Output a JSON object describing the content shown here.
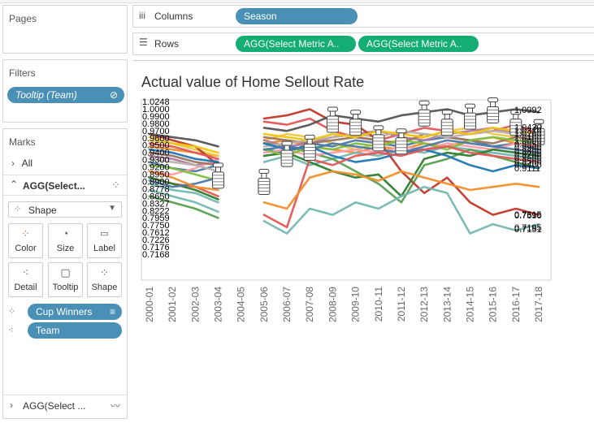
{
  "pages_panel": {
    "title": "Pages"
  },
  "filters_panel": {
    "title": "Filters",
    "pill": "Tooltip (Team)"
  },
  "marks_panel": {
    "title": "Marks",
    "all_label": "All",
    "agg_label": "AGG(Select...",
    "mark_type": "Shape",
    "buttons": [
      {
        "label": "Color",
        "icon": "color-dots-icon"
      },
      {
        "label": "Size",
        "icon": "size-icon"
      },
      {
        "label": "Label",
        "icon": "label-icon"
      },
      {
        "label": "Detail",
        "icon": "detail-icon"
      },
      {
        "label": "Tooltip",
        "icon": "tooltip-icon"
      },
      {
        "label": "Shape",
        "icon": "shape-icon"
      }
    ],
    "fields": [
      {
        "label": "Cup Winners",
        "icon": "shape-field-icon"
      },
      {
        "label": "Team",
        "icon": "detail-field-icon"
      }
    ],
    "bottom_label": "AGG(Select ..."
  },
  "columns_shelf": {
    "label": "Columns",
    "pills": [
      "Season"
    ]
  },
  "rows_shelf": {
    "label": "Rows",
    "pills": [
      "AGG(Select Metric A..",
      "AGG(Select Metric A.."
    ]
  },
  "chart_data": {
    "type": "line",
    "title": "Actual value of Home Sellout Rate",
    "categories": [
      "2000-01",
      "2001-02",
      "2002-03",
      "2003-04",
      "2004-05",
      "2005-06",
      "2006-07",
      "2007-08",
      "2008-09",
      "2009-10",
      "2010-11",
      "2011-12",
      "2012-13",
      "2013-14",
      "2014-15",
      "2015-16",
      "2016-17",
      "2017-18"
    ],
    "ylim": [
      0.55,
      1.13
    ],
    "gap_category": "2004-05",
    "grid": false,
    "colors": [
      "#e15759",
      "#4e79a7",
      "#f28e2b",
      "#76b7b2",
      "#59a14f",
      "#edc948",
      "#b07aa1",
      "#ff9da7",
      "#9c755f",
      "#bab0ac",
      "#c0392b",
      "#2e7d32",
      "#f1c40f",
      "#555555",
      "#1f77b4",
      "#7fbf3f"
    ],
    "series": [
      {
        "values": [
          0.88,
          0.86,
          0.85,
          0.82,
          null,
          1.06,
          1.05,
          1.07,
          1.03,
          1.01,
          1.0,
          1.02,
          1.04,
          1.03,
          1.02,
          1.03,
          1.05,
          1.02
        ]
      },
      {
        "values": [
          0.93,
          0.91,
          0.9,
          0.92,
          null,
          0.97,
          0.96,
          0.99,
          0.98,
          1.0,
          0.99,
          0.98,
          1.0,
          1.01,
          1.0,
          0.98,
          0.99,
          0.97
        ]
      },
      {
        "values": [
          0.98,
          0.97,
          0.96,
          0.95,
          null,
          0.99,
          1.0,
          0.98,
          0.97,
          0.96,
          0.98,
          0.97,
          0.99,
          0.98,
          1.0,
          1.01,
          0.99,
          0.98
        ]
      },
      {
        "values": [
          0.86,
          0.84,
          0.83,
          0.8,
          null,
          0.93,
          0.95,
          0.92,
          0.94,
          0.96,
          0.95,
          0.97,
          0.96,
          0.98,
          0.97,
          0.96,
          0.95,
          0.94
        ]
      },
      {
        "values": [
          0.82,
          0.8,
          0.78,
          0.75,
          null,
          0.99,
          0.98,
          0.96,
          0.94,
          0.9,
          0.86,
          0.8,
          0.92,
          0.94,
          0.97,
          0.95,
          0.93,
          0.91
        ]
      },
      {
        "values": [
          1.0,
          0.99,
          0.97,
          0.95,
          null,
          1.0,
          1.02,
          1.01,
          0.99,
          0.97,
          0.99,
          1.0,
          1.01,
          1.03,
          1.04,
          1.02,
          1.01,
          1.0
        ]
      },
      {
        "values": [
          0.95,
          0.94,
          0.92,
          0.93,
          null,
          1.0,
          0.98,
          0.99,
          1.01,
          1.02,
          1.03,
          1.01,
          1.0,
          1.02,
          1.03,
          1.04,
          1.02,
          1.01
        ]
      },
      {
        "values": [
          0.9,
          0.89,
          0.91,
          0.94,
          null,
          0.96,
          0.97,
          0.95,
          0.96,
          0.97,
          0.96,
          0.98,
          0.97,
          0.99,
          0.98,
          0.97,
          0.99,
          0.98
        ]
      },
      {
        "values": [
          0.96,
          0.95,
          0.93,
          0.92,
          null,
          1.01,
          1.0,
          0.99,
          1.0,
          1.01,
          1.0,
          0.99,
          1.02,
          1.01,
          1.0,
          0.99,
          1.01,
          1.0
        ]
      },
      {
        "values": [
          0.94,
          0.93,
          0.92,
          0.9,
          null,
          0.98,
          0.99,
          1.0,
          1.01,
          1.02,
          1.01,
          1.03,
          1.02,
          1.01,
          1.02,
          1.03,
          1.02,
          1.01
        ]
      },
      {
        "values": [
          1.02,
          1.0,
          0.98,
          0.92,
          null,
          1.07,
          1.08,
          1.1,
          1.06,
          1.05,
          1.0,
          0.9,
          0.83,
          0.88,
          0.8,
          0.76,
          0.78,
          0.76
        ]
      },
      {
        "values": [
          0.88,
          0.86,
          0.84,
          0.81,
          null,
          0.95,
          0.96,
          0.93,
          0.9,
          0.88,
          0.89,
          0.82,
          0.94,
          0.96,
          0.95,
          0.97,
          0.96,
          0.95
        ]
      },
      {
        "values": [
          1.01,
          0.99,
          0.98,
          0.96,
          null,
          1.02,
          1.01,
          1.0,
          1.02,
          1.01,
          1.03,
          1.02,
          1.01,
          1.03,
          1.02,
          1.04,
          1.03,
          1.02
        ]
      },
      {
        "values": [
          1.02,
          1.01,
          1.0,
          0.98,
          null,
          1.04,
          1.03,
          1.05,
          1.08,
          1.07,
          1.06,
          1.08,
          1.09,
          1.1,
          1.08,
          1.09,
          1.1,
          1.09
        ]
      },
      {
        "values": [
          0.97,
          0.96,
          0.94,
          0.93,
          null,
          0.99,
          0.97,
          0.98,
          0.95,
          0.93,
          0.94,
          0.96,
          0.97,
          0.95,
          0.92,
          0.9,
          0.92,
          0.91
        ]
      },
      {
        "values": [
          0.92,
          0.91,
          0.89,
          0.87,
          null,
          0.97,
          0.95,
          0.98,
          0.97,
          0.99,
          0.98,
          1.0,
          0.99,
          0.97,
          1.0,
          1.01,
          1.0,
          0.99
        ]
      },
      {
        "values": [
          0.99,
          0.98,
          0.96,
          0.94,
          null,
          0.76,
          0.72,
          0.94,
          0.92,
          0.95,
          0.96,
          0.95,
          0.97,
          0.98,
          0.96,
          0.95,
          0.94,
          0.93
        ]
      },
      {
        "values": [
          0.87,
          0.85,
          0.86,
          0.88,
          null,
          0.97,
          0.98,
          0.97,
          0.99,
          0.98,
          0.97,
          0.96,
          0.98,
          1.0,
          0.99,
          0.98,
          0.97,
          0.96
        ]
      },
      {
        "values": [
          0.9,
          0.88,
          0.85,
          0.84,
          null,
          0.8,
          0.78,
          0.88,
          0.9,
          0.89,
          0.87,
          0.9,
          0.88,
          0.86,
          0.84,
          0.85,
          0.86,
          0.85
        ]
      },
      {
        "values": [
          0.84,
          0.82,
          0.8,
          0.77,
          null,
          0.74,
          0.7,
          0.78,
          0.76,
          0.8,
          0.78,
          0.82,
          0.85,
          0.83,
          0.7,
          0.73,
          0.71,
          0.73
        ]
      }
    ],
    "left_labels": [
      "1.0248",
      "1.0000",
      "0.9900",
      "0.9800",
      "0.9700",
      "0.9600",
      "0.9500",
      "0.9400",
      "0.9300",
      "0.9200",
      "0.8950",
      "0.8900",
      "0.8778",
      "0.8650",
      "0.8327",
      "0.8222",
      "0.7959",
      "0.7750",
      "0.7612",
      "0.7226",
      "0.7176",
      "0.7168"
    ],
    "right_labels": [
      "1.0992",
      "1.0430",
      "1.0310",
      "1.0200",
      "1.0100",
      "1.0000",
      "0.9950",
      "0.9900",
      "0.9800",
      "0.9700",
      "0.9600",
      "0.9500",
      "0.9400",
      "0.9111",
      "0.7615",
      "0.7590",
      "0.7195",
      "0.7151"
    ],
    "trophies": [
      {
        "category": "2003-04",
        "value": 0.89
      },
      {
        "category": "2005-06",
        "value": 0.87
      },
      {
        "category": "2006-07",
        "value": 0.96
      },
      {
        "category": "2007-08",
        "value": 0.98
      },
      {
        "category": "2008-09",
        "value": 1.07
      },
      {
        "category": "2009-10",
        "value": 1.06
      },
      {
        "category": "2010-11",
        "value": 1.01
      },
      {
        "category": "2011-12",
        "value": 1.0
      },
      {
        "category": "2012-13",
        "value": 1.09
      },
      {
        "category": "2013-14",
        "value": 1.06
      },
      {
        "category": "2014-15",
        "value": 1.08
      },
      {
        "category": "2015-16",
        "value": 1.1
      },
      {
        "category": "2016-17",
        "value": 1.06
      },
      {
        "category": "2017-18",
        "value": 1.03
      }
    ]
  }
}
